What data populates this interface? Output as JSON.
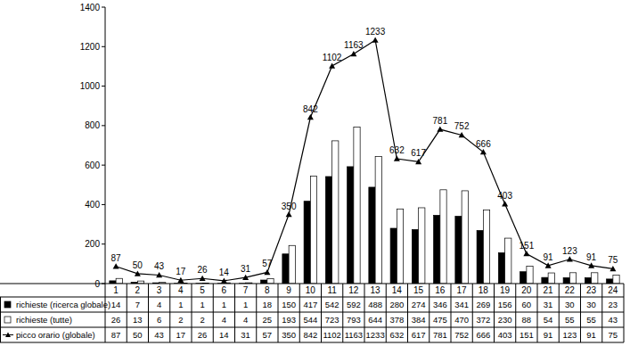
{
  "chart_data": {
    "type": "bar",
    "categories": [
      "1",
      "2",
      "3",
      "4",
      "5",
      "6",
      "7",
      "8",
      "9",
      "10",
      "11",
      "12",
      "13",
      "14",
      "15",
      "16",
      "17",
      "18",
      "19",
      "20",
      "21",
      "22",
      "23",
      "24"
    ],
    "series": [
      {
        "name": "richieste (ricerca globale)",
        "type": "bar",
        "color": "#000000",
        "values": [
          14,
          7,
          4,
          1,
          1,
          1,
          1,
          18,
          150,
          417,
          542,
          592,
          488,
          280,
          274,
          346,
          341,
          269,
          156,
          60,
          31,
          30,
          30,
          23
        ]
      },
      {
        "name": "richieste (tutte)",
        "type": "bar",
        "color": "#ffffff",
        "values": [
          26,
          13,
          6,
          2,
          2,
          4,
          4,
          25,
          193,
          544,
          723,
          793,
          644,
          378,
          384,
          475,
          470,
          372,
          230,
          88,
          54,
          55,
          55,
          43
        ]
      },
      {
        "name": "picco orario (globale)",
        "type": "line",
        "color": "#000000",
        "marker": "triangle",
        "line_style": "solid",
        "data_labels": true,
        "values": [
          87,
          50,
          43,
          17,
          26,
          14,
          31,
          57,
          350,
          842,
          1102,
          1163,
          1233,
          632,
          617,
          781,
          752,
          666,
          403,
          151,
          91,
          123,
          91,
          75
        ]
      }
    ],
    "ylim": [
      0,
      1400
    ],
    "yticks": [
      0,
      200,
      400,
      600,
      800,
      1000,
      1200,
      1400
    ],
    "grid": false
  }
}
